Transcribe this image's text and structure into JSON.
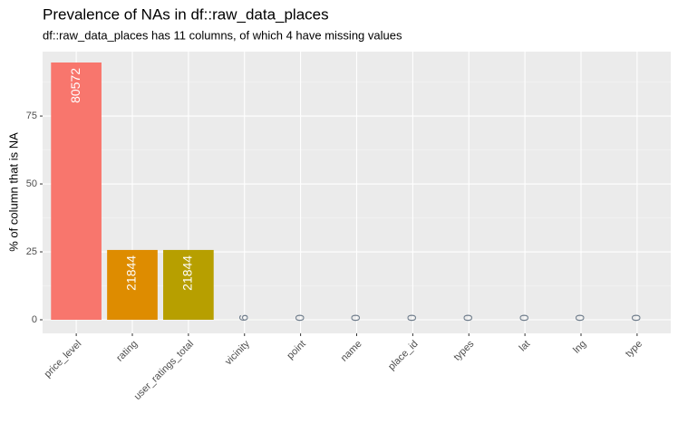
{
  "chart_data": {
    "type": "bar",
    "title": "Prevalence of NAs in df::raw_data_places",
    "subtitle": "df::raw_data_places has 11 columns, of which 4 have missing values",
    "y_label": "% of column that is NA",
    "categories": [
      "price_level",
      "rating",
      "user_ratings_total",
      "vicinity",
      "point",
      "name",
      "place_id",
      "types",
      "lat",
      "lng",
      "type"
    ],
    "values": [
      94.7,
      25.7,
      25.7,
      0.007,
      0,
      0,
      0,
      0,
      0,
      0,
      0
    ],
    "na_counts": [
      80572,
      21844,
      21844,
      6,
      0,
      0,
      0,
      0,
      0,
      0,
      0
    ],
    "colors": [
      "#F8766D",
      "#DE8C00",
      "#B79F00",
      "#7CAE00",
      "#00BA38",
      "#00C08B",
      "#00BFC4",
      "#00B4F0",
      "#619CFF",
      "#C77CFF",
      "#F564E3"
    ],
    "label_color_inside": "#ffffff",
    "label_color_outside": "#6c7a89",
    "ylim": [
      -5,
      98.7
    ],
    "yticks": [
      0,
      25,
      50,
      75
    ],
    "grid": true
  }
}
